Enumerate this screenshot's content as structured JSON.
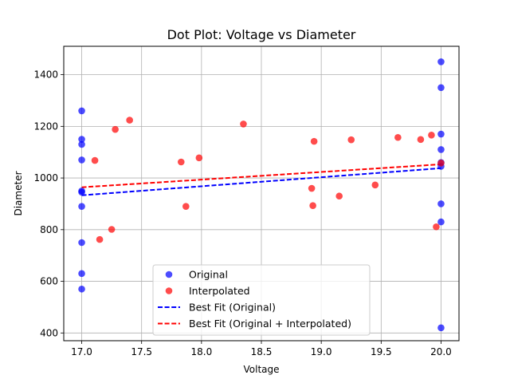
{
  "chart_data": {
    "type": "scatter",
    "title": "Dot Plot: Voltage vs Diameter",
    "xlabel": "Voltage",
    "ylabel": "Diameter",
    "xlim": [
      16.85,
      20.15
    ],
    "ylim": [
      370,
      1510
    ],
    "x_ticks": [
      "17.0",
      "17.5",
      "18.0",
      "18.5",
      "19.0",
      "19.5",
      "20.0"
    ],
    "y_ticks": [
      "400",
      "600",
      "800",
      "1000",
      "1200",
      "1400"
    ],
    "x_tick_values": [
      17.0,
      17.5,
      18.0,
      18.5,
      19.0,
      19.5,
      20.0
    ],
    "y_tick_values": [
      400,
      600,
      800,
      1000,
      1200,
      1400
    ],
    "grid": true,
    "legend_position": "bottom-center",
    "series": [
      {
        "name": "Original",
        "kind": "scatter",
        "color": "#0000ff",
        "points": [
          [
            17.0,
            1260
          ],
          [
            17.0,
            1150
          ],
          [
            17.0,
            1130
          ],
          [
            17.0,
            1070
          ],
          [
            17.0,
            950
          ],
          [
            17.0,
            945
          ],
          [
            17.0,
            890
          ],
          [
            17.0,
            750
          ],
          [
            17.0,
            630
          ],
          [
            17.0,
            570
          ],
          [
            20.0,
            1450
          ],
          [
            20.0,
            1350
          ],
          [
            20.0,
            1170
          ],
          [
            20.0,
            1110
          ],
          [
            20.0,
            1060
          ],
          [
            20.0,
            1045
          ],
          [
            20.0,
            900
          ],
          [
            20.0,
            830
          ],
          [
            20.0,
            420
          ]
        ]
      },
      {
        "name": "Interpolated",
        "kind": "scatter",
        "color": "#ff0000",
        "points": [
          [
            17.11,
            1068
          ],
          [
            17.15,
            762
          ],
          [
            17.25,
            801
          ],
          [
            17.28,
            1188
          ],
          [
            17.4,
            1224
          ],
          [
            17.83,
            1062
          ],
          [
            17.87,
            890
          ],
          [
            17.98,
            1078
          ],
          [
            18.35,
            1209
          ],
          [
            18.92,
            960
          ],
          [
            18.93,
            893
          ],
          [
            18.94,
            1142
          ],
          [
            19.15,
            930
          ],
          [
            19.25,
            1148
          ],
          [
            19.45,
            973
          ],
          [
            19.64,
            1157
          ],
          [
            19.83,
            1149
          ],
          [
            19.92,
            1166
          ],
          [
            19.96,
            811
          ],
          [
            20.0,
            1058
          ]
        ]
      },
      {
        "name": "Best Fit (Original)",
        "kind": "line",
        "color": "#0000ff",
        "style": "dashed",
        "points": [
          [
            17.0,
            933
          ],
          [
            20.0,
            1038
          ]
        ]
      },
      {
        "name": "Best Fit (Original + Interpolated)",
        "kind": "line",
        "color": "#ff0000",
        "style": "dashed",
        "points": [
          [
            17.0,
            964
          ],
          [
            20.0,
            1053
          ]
        ]
      }
    ]
  }
}
